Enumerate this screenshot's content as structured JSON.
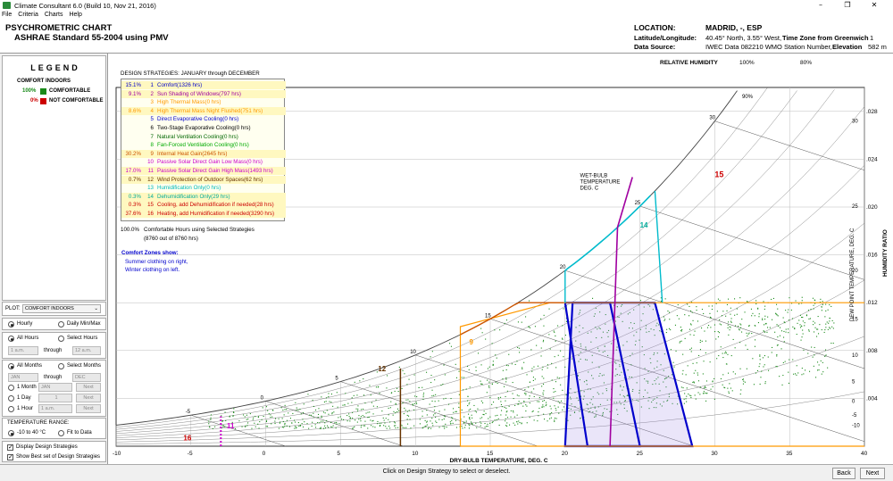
{
  "window": {
    "title": "Climate Consultant 6.0 (Build 10, Nov 21, 2016)",
    "minimize": "–",
    "maximize": "❐",
    "close": "✕"
  },
  "menu": [
    "File",
    "Criteria",
    "Charts",
    "Help"
  ],
  "header": {
    "title1": "PSYCHROMETRIC CHART",
    "title2": "ASHRAE Standard 55-2004 using PMV",
    "location_label": "LOCATION:",
    "location_value": "MADRID, -, ESP",
    "latlong_label": "Latitude/Longitude:",
    "latlong_value": "40.45° North, 3.55° West,",
    "tz_label": "Time Zone from Greenwich",
    "tz_value": "1",
    "source_label": "Data Source:",
    "source_value": "IWEC Data     082210 WMO Station Number,",
    "elev_label": "Elevation",
    "elev_value": "582 m"
  },
  "legend": {
    "title": "LEGEND",
    "comfort_indoors": "COMFORT INDOORS",
    "comfortable_pct": "100%",
    "comfortable": "COMFORTABLE",
    "not_pct": "0%",
    "not": "NOT COMFORTABLE",
    "comfortable_color": "#1a8a1a",
    "not_color": "#cc0000"
  },
  "controls": {
    "plot_label": "PLOT:",
    "plot_value": "COMFORT INDOORS",
    "hourly": "Hourly",
    "daily": "Daily Min/Max",
    "all_hours": "All Hours",
    "select_hours": "Select Hours",
    "h_from": "1 a.m.",
    "through": "through",
    "h_to": "12 a.m.",
    "all_months": "All Months",
    "select_months": "Select Months",
    "m_from": "JAN",
    "m_to": "DEC",
    "one_month": "1 Month",
    "one_month_val": "JAN",
    "one_day": "1 Day",
    "one_day_val": "1",
    "one_hour": "1 Hour",
    "one_hour_val": "1 a.m.",
    "next": "Next",
    "temp_range": "TEMPERATURE RANGE:",
    "temp_opt1": "-10 to 40 °C",
    "temp_opt2": "Fit to Data",
    "display_strategies": "Display Design Strategies",
    "show_best": "Show Best set of Design Strategies"
  },
  "strategies": {
    "heading": "DESIGN STRATEGIES:  JANUARY through DECEMBER",
    "items": [
      {
        "pct": "15.1%",
        "num": "1",
        "label": "Comfort(1326 hrs)",
        "color": "#0000cc"
      },
      {
        "pct": "9.1%",
        "num": "2",
        "label": "Sun Shading of Windows(797 hrs)",
        "color": "#a000a0"
      },
      {
        "pct": "",
        "num": "3",
        "label": "High Thermal Mass(0 hrs)",
        "color": "#ff9900"
      },
      {
        "pct": "8.6%",
        "num": "4",
        "label": "High Thermal Mass Night Flushed(751 hrs)",
        "color": "#ff9900"
      },
      {
        "pct": "",
        "num": "5",
        "label": "Direct Evaporative Cooling(0 hrs)",
        "color": "#0000cc"
      },
      {
        "pct": "",
        "num": "6",
        "label": "Two-Stage Evaporative Cooling(0 hrs)",
        "color": "#000000"
      },
      {
        "pct": "",
        "num": "7",
        "label": "Natural Ventilation Cooling(0 hrs)",
        "color": "#006600"
      },
      {
        "pct": "",
        "num": "8",
        "label": "Fan-Forced Ventilation Cooling(0 hrs)",
        "color": "#00aa00"
      },
      {
        "pct": "30.2%",
        "num": "9",
        "label": "Internal Heat Gain(2645 hrs)",
        "color": "#cc5500"
      },
      {
        "pct": "",
        "num": "10",
        "label": "Passive Solar Direct Gain Low Mass(0 hrs)",
        "color": "#cc00cc"
      },
      {
        "pct": "17.0%",
        "num": "11",
        "label": "Passive Solar Direct Gain High Mass(1493 hrs)",
        "color": "#cc00cc"
      },
      {
        "pct": "0.7%",
        "num": "12",
        "label": "Wind Protection of Outdoor Spaces(62 hrs)",
        "color": "#663300"
      },
      {
        "pct": "",
        "num": "13",
        "label": "Humidification Only(0 hrs)",
        "color": "#00bbbb"
      },
      {
        "pct": "0.3%",
        "num": "14",
        "label": "Dehumidification Only(29 hrs)",
        "color": "#00aa99"
      },
      {
        "pct": "0.3%",
        "num": "15",
        "label": "Cooling, add Dehumidification if needed(28 hrs)",
        "color": "#cc0000"
      },
      {
        "pct": "37.6%",
        "num": "16",
        "label": "Heating, add Humidification if needed(3290 hrs)",
        "color": "#cc0000"
      }
    ],
    "summary_pct": "100.0%",
    "summary": "Comfortable Hours using Selected Strategies",
    "summary2": "(8760 out of 8760 hrs)",
    "zones_heading": "Comfort Zones show:",
    "zones1": "Summer clothing on right,",
    "zones2": "Winter clothing on left."
  },
  "chart_data": {
    "type": "scatter",
    "title": "",
    "xlabel": "DRY-BULB TEMPERATURE, DEG. C",
    "ylabel_right": "HUMIDITY RATIO",
    "ylabel_right2": "DEW POINT TEMPERATURE, DEG. C",
    "rh_label": "RELATIVE HUMIDITY",
    "rh_100": "100%",
    "rh_80": "80%",
    "rh_90": "90%",
    "wetbulb_label": [
      "WET-BULB",
      "TEMPERATURE",
      "DEG. C"
    ],
    "xlim": [
      -10,
      40
    ],
    "ylim": [
      0,
      0.03
    ],
    "x_ticks": [
      "-10",
      "-5",
      "0",
      "5",
      "10",
      "15",
      "20",
      "25",
      "30",
      "35",
      "40"
    ],
    "y_ticks": [
      ".028",
      ".024",
      ".020",
      ".016",
      ".012",
      ".008",
      ".004"
    ],
    "dewpoint_ticks": [
      "30",
      "25",
      "20",
      "15",
      "10",
      "5",
      "0",
      "-5",
      "-10"
    ],
    "zone_labels": [
      "15",
      "14",
      "12",
      "11",
      "16",
      "9"
    ],
    "wetbulb_ticks": [
      "-5",
      "0",
      "5",
      "10",
      "15",
      "20",
      "25",
      "30"
    ],
    "point_count": 8760
  },
  "footer": {
    "hint": "Click on Design Strategy to select or deselect.",
    "back": "Back",
    "next": "Next"
  }
}
